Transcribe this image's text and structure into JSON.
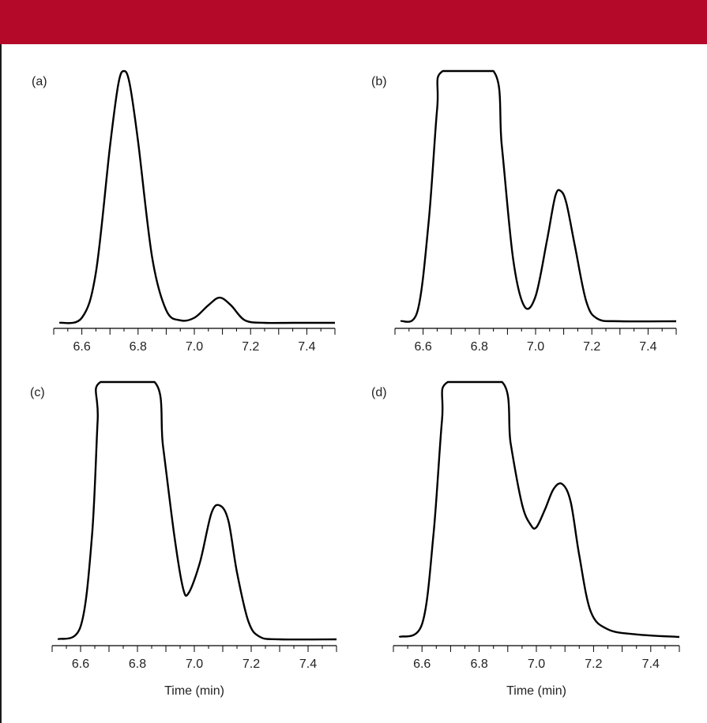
{
  "colors": {
    "header_band": "#b5092a",
    "trace": "#000000",
    "axis": "#000000",
    "text": "#222222"
  },
  "chart_data": [
    {
      "type": "line",
      "panel_label": "(a)",
      "xlabel": "",
      "xlim": [
        6.5,
        7.5
      ],
      "xticks": [
        "6.6",
        "6.8",
        "7.0",
        "7.2",
        "7.4"
      ],
      "ylim": [
        0,
        1.0
      ],
      "y_axis": "hidden",
      "grid": false,
      "series": [
        {
          "x": [
            6.52,
            6.6,
            6.65,
            6.7,
            6.73,
            6.75,
            6.77,
            6.8,
            6.85,
            6.9,
            6.95,
            7.0,
            7.05,
            7.09,
            7.13,
            7.18,
            7.25,
            7.35,
            7.5
          ],
          "y": [
            0.0,
            0.02,
            0.2,
            0.7,
            0.95,
            1.0,
            0.95,
            0.72,
            0.26,
            0.05,
            0.01,
            0.02,
            0.07,
            0.1,
            0.07,
            0.01,
            0.0,
            0.0,
            0.0
          ]
        }
      ]
    },
    {
      "type": "line",
      "panel_label": "(b)",
      "xlabel": "",
      "xlim": [
        6.5,
        7.5
      ],
      "xticks": [
        "6.6",
        "6.8",
        "7.0",
        "7.2",
        "7.4"
      ],
      "ylim": [
        0,
        1.0
      ],
      "y_axis": "hidden",
      "grid": false,
      "series": [
        {
          "x": [
            6.52,
            6.58,
            6.62,
            6.65,
            6.67,
            6.85,
            6.88,
            6.92,
            6.96,
            7.0,
            7.04,
            7.07,
            7.09,
            7.11,
            7.14,
            7.18,
            7.22,
            7.3,
            7.5
          ],
          "y": [
            0.0,
            0.04,
            0.4,
            0.85,
            1.0,
            1.0,
            0.7,
            0.25,
            0.06,
            0.1,
            0.32,
            0.5,
            0.52,
            0.47,
            0.3,
            0.08,
            0.01,
            0.0,
            0.0
          ]
        }
      ]
    },
    {
      "type": "line",
      "panel_label": "(c)",
      "xlabel": "Time (min)",
      "xlim": [
        6.5,
        7.5
      ],
      "xticks": [
        "6.6",
        "6.8",
        "7.0",
        "7.2",
        "7.4"
      ],
      "ylim": [
        0,
        1.0
      ],
      "y_axis": "hidden",
      "grid": false,
      "series": [
        {
          "x": [
            6.52,
            6.6,
            6.64,
            6.66,
            6.67,
            6.86,
            6.89,
            6.93,
            6.96,
            6.98,
            7.02,
            7.06,
            7.09,
            7.12,
            7.15,
            7.19,
            7.23,
            7.3,
            7.5
          ],
          "y": [
            0.0,
            0.05,
            0.4,
            0.85,
            1.0,
            1.0,
            0.75,
            0.4,
            0.2,
            0.18,
            0.3,
            0.49,
            0.52,
            0.46,
            0.26,
            0.07,
            0.01,
            0.0,
            0.0
          ]
        }
      ]
    },
    {
      "type": "line",
      "panel_label": "(d)",
      "xlabel": "Time (min)",
      "xlim": [
        6.5,
        7.5
      ],
      "xticks": [
        "6.6",
        "6.8",
        "7.0",
        "7.2",
        "7.4"
      ],
      "ylim": [
        0,
        1.0
      ],
      "y_axis": "hidden",
      "grid": false,
      "series": [
        {
          "x": [
            6.52,
            6.6,
            6.64,
            6.67,
            6.69,
            6.88,
            6.91,
            6.95,
            6.98,
            7.0,
            7.03,
            7.06,
            7.09,
            7.12,
            7.15,
            7.19,
            7.25,
            7.35,
            7.5
          ],
          "y": [
            0.0,
            0.05,
            0.4,
            0.85,
            1.0,
            1.0,
            0.76,
            0.52,
            0.44,
            0.43,
            0.5,
            0.58,
            0.6,
            0.53,
            0.32,
            0.1,
            0.03,
            0.01,
            0.0
          ]
        }
      ]
    }
  ]
}
